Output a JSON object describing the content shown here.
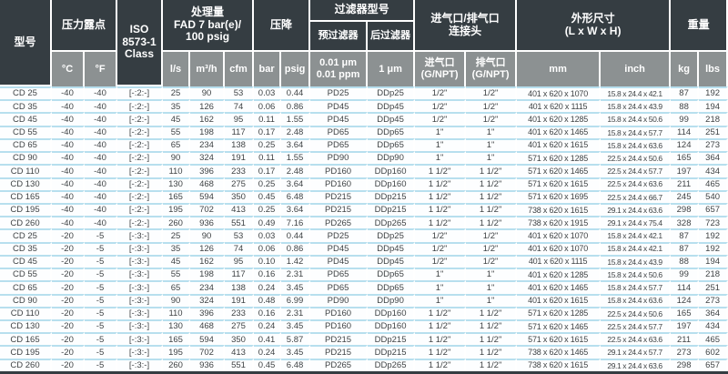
{
  "title": "CD series adsorption dryer specification table",
  "colors": {
    "header_dark": "#353d42",
    "header_gray": "#8c9192",
    "row_line": "#b7dfee",
    "row_bg": "#fdfeff",
    "data_text": "#3f4345"
  },
  "table": {
    "header": {
      "model": "型号",
      "dew_point": "压力露点",
      "iso": "ISO\n8573-1\nClass",
      "capacity": "处理量\nFAD 7 bar(e)/\n100 psig",
      "pressure_drop": "压降",
      "filter_group": "过滤器型号",
      "prefilter": "预过滤器",
      "afterfilter": "后过滤器",
      "connection": "进气口/排气口\n连接头",
      "dimensions": "外形尺寸\n(L x W x H)",
      "weight": "重量",
      "units": {
        "c": "°C",
        "f": "°F",
        "ls": "l/s",
        "m3h": "m³/h",
        "cfm": "cfm",
        "bar": "bar",
        "psig": "psig",
        "prefilter_spec": "0.01 μm\n0.01 ppm",
        "afterfilter_spec": "1 μm",
        "inlet": "进气口\n(G/NPT)",
        "outlet": "排气口\n(G/NPT)",
        "mm": "mm",
        "inch": "inch",
        "kg": "kg",
        "lbs": "lbs"
      }
    },
    "rows": [
      [
        "CD 25",
        "-40",
        "-40",
        "[-:2:-]",
        "25",
        "90",
        "53",
        "0.03",
        "0.44",
        "PD25",
        "DDp25",
        "1/2\"",
        "1/2\"",
        "401 x 620 x 1070",
        "15.8 x 24.4 x 42.1",
        "87",
        "192"
      ],
      [
        "CD 35",
        "-40",
        "-40",
        "[-:2:-]",
        "35",
        "126",
        "74",
        "0.06",
        "0.86",
        "PD45",
        "DDp45",
        "1/2\"",
        "1/2\"",
        "401 x 620 x 1115",
        "15.8 x 24.4 x 43.9",
        "88",
        "194"
      ],
      [
        "CD 45",
        "-40",
        "-40",
        "[-:2:-]",
        "45",
        "162",
        "95",
        "0.11",
        "1.55",
        "PD45",
        "DDp45",
        "1/2\"",
        "1/2\"",
        "401 x 620 x 1285",
        "15.8 x 24.4 x 50.6",
        "99",
        "218"
      ],
      [
        "CD 55",
        "-40",
        "-40",
        "[-:2:-]",
        "55",
        "198",
        "117",
        "0.17",
        "2.48",
        "PD65",
        "DDp65",
        "1\"",
        "1\"",
        "401 x 620 x 1465",
        "15.8 x 24.4 x 57.7",
        "114",
        "251"
      ],
      [
        "CD 65",
        "-40",
        "-40",
        "[-:2:-]",
        "65",
        "234",
        "138",
        "0.25",
        "3.64",
        "PD65",
        "DDp65",
        "1\"",
        "1\"",
        "401 x 620 x 1615",
        "15.8 x 24.4 x 63.6",
        "124",
        "273"
      ],
      [
        "CD 90",
        "-40",
        "-40",
        "[-:2:-]",
        "90",
        "324",
        "191",
        "0.11",
        "1.55",
        "PD90",
        "DDp90",
        "1\"",
        "1\"",
        "571 x 620 x 1285",
        "22.5 x 24.4 x 50.6",
        "165",
        "364"
      ],
      [
        "CD 110",
        "-40",
        "-40",
        "[-:2:-]",
        "110",
        "396",
        "233",
        "0.17",
        "2.48",
        "PD160",
        "DDp160",
        "1 1/2\"",
        "1 1/2\"",
        "571 x 620 x 1465",
        "22.5 x 24.4 x 57.7",
        "197",
        "434"
      ],
      [
        "CD 130",
        "-40",
        "-40",
        "[-:2:-]",
        "130",
        "468",
        "275",
        "0.25",
        "3.64",
        "PD160",
        "DDp160",
        "1 1/2\"",
        "1 1/2\"",
        "571 x 620 x 1615",
        "22.5 x 24.4 x 63.6",
        "211",
        "465"
      ],
      [
        "CD 165",
        "-40",
        "-40",
        "[-:2:-]",
        "165",
        "594",
        "350",
        "0.45",
        "6.48",
        "PD215",
        "DDp215",
        "1 1/2\"",
        "1 1/2\"",
        "571 x 620 x 1695",
        "22.5 x 24.4 x 66.7",
        "245",
        "540"
      ],
      [
        "CD 195",
        "-40",
        "-40",
        "[-:2:-]",
        "195",
        "702",
        "413",
        "0.25",
        "3.64",
        "PD215",
        "DDp215",
        "1 1/2\"",
        "1 1/2\"",
        "738 x 620 x 1615",
        "29.1 x 24.4 x 63.6",
        "298",
        "657"
      ],
      [
        "CD 260",
        "-40",
        "-40",
        "[-:2:-]",
        "260",
        "936",
        "551",
        "0.49",
        "7.16",
        "PD265",
        "DDp265",
        "1 1/2\"",
        "1 1/2\"",
        "738 x 620 x 1915",
        "29.1 x 24.4 x 75.4",
        "328",
        "723"
      ],
      [
        "CD 25",
        "-20",
        "-5",
        "[-:3:-]",
        "25",
        "90",
        "53",
        "0.03",
        "0.44",
        "PD25",
        "DDp25",
        "1/2\"",
        "1/2\"",
        "401 x 620 x 1070",
        "15.8 x 24.4 x 42.1",
        "87",
        "192"
      ],
      [
        "CD 35",
        "-20",
        "-5",
        "[-:3:-]",
        "35",
        "126",
        "74",
        "0.06",
        "0.86",
        "PD45",
        "DDp45",
        "1/2\"",
        "1/2\"",
        "401 x 620 x 1070",
        "15.8 x 24.4 x 42.1",
        "87",
        "192"
      ],
      [
        "CD 45",
        "-20",
        "-5",
        "[-:3:-]",
        "45",
        "162",
        "95",
        "0.10",
        "1.42",
        "PD45",
        "DDp45",
        "1/2\"",
        "1/2\"",
        "401 x 620 x 1115",
        "15.8 x 24.4 x 43.9",
        "88",
        "194"
      ],
      [
        "CD 55",
        "-20",
        "-5",
        "[-:3:-]",
        "55",
        "198",
        "117",
        "0.16",
        "2.31",
        "PD65",
        "DDp65",
        "1\"",
        "1\"",
        "401 x 620 x 1285",
        "15.8 x 24.4 x 50.6",
        "99",
        "218"
      ],
      [
        "CD 65",
        "-20",
        "-5",
        "[-:3:-]",
        "65",
        "234",
        "138",
        "0.24",
        "3.45",
        "PD65",
        "DDp65",
        "1\"",
        "1\"",
        "401 x 620 x 1465",
        "15.8 x 24.4 x 57.7",
        "114",
        "251"
      ],
      [
        "CD 90",
        "-20",
        "-5",
        "[-:3:-]",
        "90",
        "324",
        "191",
        "0.48",
        "6.99",
        "PD90",
        "DDp90",
        "1\"",
        "1\"",
        "401 x 620 x 1615",
        "15.8 x 24.4 x 63.6",
        "124",
        "273"
      ],
      [
        "CD 110",
        "-20",
        "-5",
        "[-:3:-]",
        "110",
        "396",
        "233",
        "0.16",
        "2.31",
        "PD160",
        "DDp160",
        "1 1/2\"",
        "1 1/2\"",
        "571 x 620 x 1285",
        "22.5 x 24.4 x 50.6",
        "165",
        "364"
      ],
      [
        "CD 130",
        "-20",
        "-5",
        "[-:3:-]",
        "130",
        "468",
        "275",
        "0.24",
        "3.45",
        "PD160",
        "DDp160",
        "1 1/2\"",
        "1 1/2\"",
        "571 x 620 x 1465",
        "22.5 x 24.4 x 57.7",
        "197",
        "434"
      ],
      [
        "CD 165",
        "-20",
        "-5",
        "[-:3:-]",
        "165",
        "594",
        "350",
        "0.41",
        "5.87",
        "PD215",
        "DDp215",
        "1 1/2\"",
        "1 1/2\"",
        "571 x 620 x 1615",
        "22.5 x 24.4 x 63.6",
        "211",
        "465"
      ],
      [
        "CD 195",
        "-20",
        "-5",
        "[-:3:-]",
        "195",
        "702",
        "413",
        "0.24",
        "3.45",
        "PD215",
        "DDp215",
        "1 1/2\"",
        "1 1/2\"",
        "738 x 620 x 1465",
        "29.1 x 24.4 x 57.7",
        "273",
        "602"
      ],
      [
        "CD 260",
        "-20",
        "-5",
        "[-:3:-]",
        "260",
        "936",
        "551",
        "0.45",
        "6.48",
        "PD265",
        "DDp265",
        "1 1/2\"",
        "1 1/2\"",
        "738 x 620 x 1615",
        "29.1 x 24.4 x 63.6",
        "298",
        "657"
      ]
    ]
  }
}
